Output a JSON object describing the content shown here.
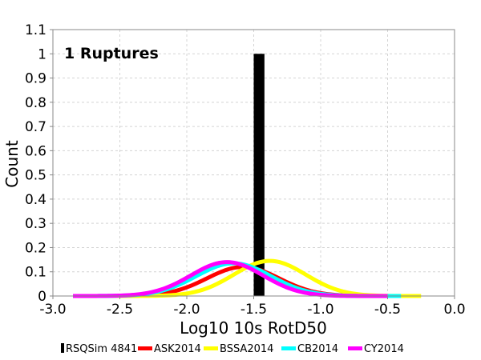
{
  "chart_data": {
    "type": "line",
    "annotation": "1 Ruptures",
    "xlabel": "Log10 10s RotD50",
    "ylabel": "Count",
    "xlim": [
      -3.0,
      0.0
    ],
    "ylim": [
      0,
      1.1
    ],
    "x_ticks": [
      "-3.0",
      "-2.5",
      "-2.0",
      "-1.5",
      "-1.0",
      "-0.5",
      "0.0"
    ],
    "y_ticks": [
      "0",
      "0.1",
      "0.2",
      "0.3",
      "0.4",
      "0.5",
      "0.6",
      "0.7",
      "0.8",
      "0.9",
      "1",
      "1.1"
    ],
    "grid": true,
    "legend_position": "bottom",
    "histogram": {
      "name": "RSQSim 4841",
      "color": "#000000",
      "bin_min": -1.5,
      "bin_max": -1.42,
      "value": 1
    },
    "series": [
      {
        "name": "ASK2014",
        "color": "#ff0000",
        "mean": -1.58,
        "peak": 0.12,
        "sd": 0.27,
        "x_min": -2.85,
        "x_max": -0.4
      },
      {
        "name": "BSSA2014",
        "color": "#ffff00",
        "mean": -1.38,
        "peak": 0.145,
        "sd": 0.27,
        "x_min": -2.85,
        "x_max": -0.25
      },
      {
        "name": "CB2014",
        "color": "#00ffff",
        "mean": -1.65,
        "peak": 0.135,
        "sd": 0.28,
        "x_min": -2.85,
        "x_max": -0.4
      },
      {
        "name": "CY2014",
        "color": "#ff00ff",
        "mean": -1.7,
        "peak": 0.14,
        "sd": 0.27,
        "x_min": -2.85,
        "x_max": -0.5
      }
    ]
  }
}
